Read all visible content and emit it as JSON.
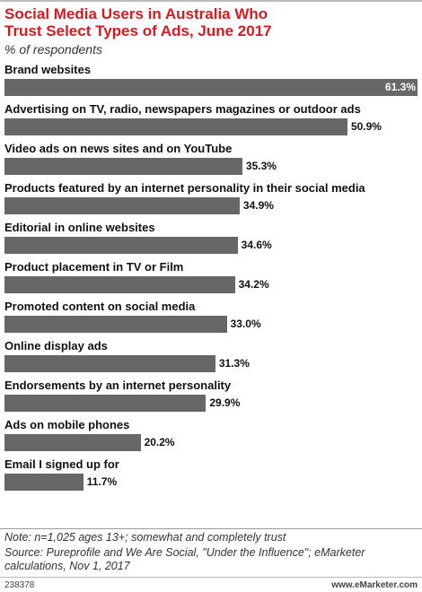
{
  "chart_data": {
    "type": "bar",
    "orientation": "horizontal",
    "title": "Social Media Users in Australia Who Trust Select Types of Ads, June 2017",
    "subtitle": "% of respondents",
    "categories": [
      "Brand websites",
      "Advertising on TV, radio, newspapers magazines or outdoor ads",
      "Video ads on news sites and on YouTube",
      "Products featured by an internet personality in their social media",
      "Editorial in online websites",
      "Product placement in TV or Film",
      "Promoted content on social media",
      "Online display ads",
      "Endorsements by an internet personality",
      "Ads on mobile phones",
      "Email I signed up for"
    ],
    "values": [
      61.3,
      50.9,
      35.3,
      34.9,
      34.6,
      34.2,
      33.0,
      31.3,
      29.9,
      20.2,
      11.7
    ],
    "value_labels": [
      "61.3%",
      "50.9%",
      "35.3%",
      "34.9%",
      "34.6%",
      "34.2%",
      "33.0%",
      "31.3%",
      "29.9%",
      "20.2%",
      "11.7%"
    ],
    "color": "#676767",
    "note": "Note: n=1,025 ages 13+; somewhat and completely trust",
    "source": "Source: Pureprofile and We Are Social, \"Under the Influence\"; eMarketer calculations, Nov 1, 2017",
    "chart_id": "238378",
    "website": "www.eMarketer.com"
  }
}
